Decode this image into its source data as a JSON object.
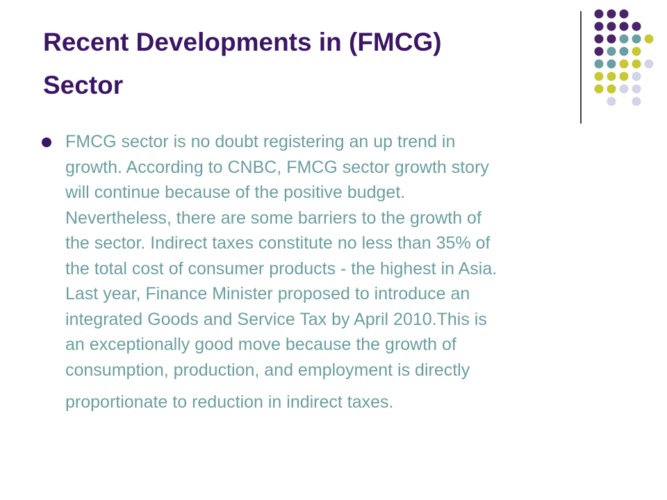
{
  "slide": {
    "title_lines": [
      "Recent Developments in (FMCG)",
      "Sector"
    ],
    "body_lines": [
      "FMCG sector is no doubt registering an up trend in",
      "growth. According to CNBC, FMCG sector growth story",
      "will continue because of the positive budget.",
      "Nevertheless, there are some barriers to the growth of",
      "the sector. Indirect taxes constitute no less than 35% of",
      "the total cost of consumer products - the highest in Asia.",
      "Last year, Finance Minister proposed to introduce an",
      "integrated Goods and Service Tax by April 2010.This is",
      "an exceptionally good move because the growth of",
      "consumption, production, and employment is directly",
      "proportionate to reduction in indirect taxes."
    ]
  },
  "colors": {
    "title": "#3b1566",
    "body_text": "#6b9ea0",
    "bullet": "#3b1566",
    "dot_purple": "#4a2468",
    "dot_teal": "#6b9ea0",
    "dot_yellow": "#c8c832",
    "dot_lavender": "#d4d4e8"
  }
}
